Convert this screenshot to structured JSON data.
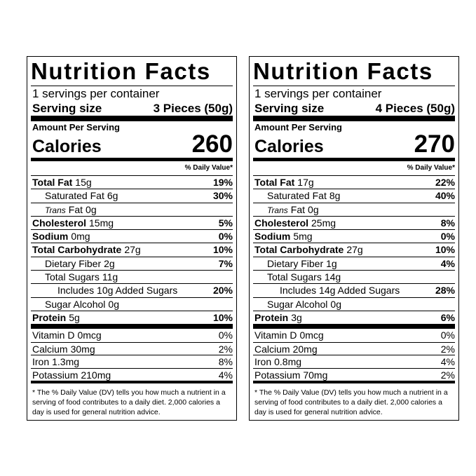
{
  "labels": [
    {
      "title": "Nutrition Facts",
      "servings": "1 servings per container",
      "serving_size_label": "Serving size",
      "serving_size": "3 Pieces (50g)",
      "amount_per_serving": "Amount Per Serving",
      "calories_label": "Calories",
      "calories": 260,
      "dv_header": "% Daily Value*",
      "nutrients": [
        {
          "name": "Total Fat",
          "amount": "15g",
          "dv": "19%",
          "bold": true,
          "indent": 0
        },
        {
          "name": "Saturated Fat",
          "amount": "6g",
          "dv": "30%",
          "bold": false,
          "indent": 1
        },
        {
          "prefix": "Trans",
          "name": "Fat",
          "amount": "0g",
          "bold": false,
          "indent": 1
        },
        {
          "name": "Cholesterol",
          "amount": "15mg",
          "dv": "5%",
          "bold": true,
          "indent": 0
        },
        {
          "name": "Sodium",
          "amount": "0mg",
          "dv": "0%",
          "bold": true,
          "indent": 0
        },
        {
          "name": "Total Carbohydrate",
          "amount": "27g",
          "dv": "10%",
          "bold": true,
          "indent": 0
        },
        {
          "name": "Dietary Fiber",
          "amount": "2g",
          "dv": "7%",
          "bold": false,
          "indent": 1
        },
        {
          "name": "Total Sugars",
          "amount": "11g",
          "bold": false,
          "indent": 1
        },
        {
          "name": "Includes 10g Added Sugars",
          "dv": "20%",
          "bold": false,
          "indent": 2
        },
        {
          "name": "Sugar Alcohol",
          "amount": "0g",
          "bold": false,
          "indent": 1
        },
        {
          "name": "Protein",
          "amount": "5g",
          "dv": "10%",
          "bold": true,
          "indent": 0
        }
      ],
      "vitamins": [
        {
          "name": "Vitamin D",
          "amount": "0mcg",
          "dv": "0%"
        },
        {
          "name": "Calcium",
          "amount": "30mg",
          "dv": "2%"
        },
        {
          "name": "Iron",
          "amount": "1.3mg",
          "dv": "8%"
        },
        {
          "name": "Potassium",
          "amount": "210mg",
          "dv": "4%"
        }
      ],
      "footnote": "* The % Daily Value (DV) tells you how much a nutrient in a serving of food contributes to a daily diet. 2,000 calories a day is used for general nutrition advice."
    },
    {
      "title": "Nutrition Facts",
      "servings": "1 servings per container",
      "serving_size_label": "Serving size",
      "serving_size": "4 Pieces (50g)",
      "amount_per_serving": "Amount Per Serving",
      "calories_label": "Calories",
      "calories": 270,
      "dv_header": "% Daily Value*",
      "nutrients": [
        {
          "name": "Total Fat",
          "amount": "17g",
          "dv": "22%",
          "bold": true,
          "indent": 0
        },
        {
          "name": "Saturated Fat",
          "amount": "8g",
          "dv": "40%",
          "bold": false,
          "indent": 1
        },
        {
          "prefix": "Trans",
          "name": "Fat",
          "amount": "0g",
          "bold": false,
          "indent": 1
        },
        {
          "name": "Cholesterol",
          "amount": "25mg",
          "dv": "8%",
          "bold": true,
          "indent": 0
        },
        {
          "name": "Sodium",
          "amount": "5mg",
          "dv": "0%",
          "bold": true,
          "indent": 0
        },
        {
          "name": "Total Carbohydrate",
          "amount": "27g",
          "dv": "10%",
          "bold": true,
          "indent": 0
        },
        {
          "name": "Dietary Fiber",
          "amount": "1g",
          "dv": "4%",
          "bold": false,
          "indent": 1
        },
        {
          "name": "Total Sugars",
          "amount": "14g",
          "bold": false,
          "indent": 1
        },
        {
          "name": "Includes 14g Added Sugars",
          "dv": "28%",
          "bold": false,
          "indent": 2
        },
        {
          "name": "Sugar Alcohol",
          "amount": "0g",
          "bold": false,
          "indent": 1
        },
        {
          "name": "Protein",
          "amount": "3g",
          "dv": "6%",
          "bold": true,
          "indent": 0
        }
      ],
      "vitamins": [
        {
          "name": "Vitamin D",
          "amount": "0mcg",
          "dv": "0%"
        },
        {
          "name": "Calcium",
          "amount": "20mg",
          "dv": "2%"
        },
        {
          "name": "Iron",
          "amount": "0.8mg",
          "dv": "4%"
        },
        {
          "name": "Potassium",
          "amount": "70mg",
          "dv": "2%"
        }
      ],
      "footnote": "* The % Daily Value (DV) tells you how much a nutrient in a serving of food contributes to a daily diet. 2,000 calories a day is used for general nutrition advice."
    }
  ]
}
